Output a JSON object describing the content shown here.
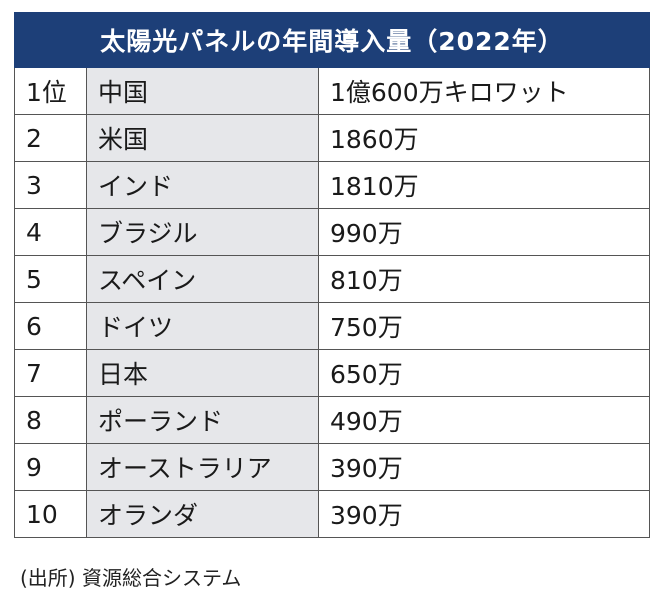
{
  "title": "太陽光パネルの年間導入量（2022年）",
  "rows": [
    {
      "rank": "1位",
      "country": "中国",
      "amount": "1億600万キロワット"
    },
    {
      "rank": "2",
      "country": "米国",
      "amount": "1860万"
    },
    {
      "rank": "3",
      "country": "インド",
      "amount": "1810万"
    },
    {
      "rank": "4",
      "country": "ブラジル",
      "amount": "990万"
    },
    {
      "rank": "5",
      "country": "スペイン",
      "amount": "810万"
    },
    {
      "rank": "6",
      "country": "ドイツ",
      "amount": "750万"
    },
    {
      "rank": "7",
      "country": "日本",
      "amount": "650万"
    },
    {
      "rank": "8",
      "country": "ポーランド",
      "amount": "490万"
    },
    {
      "rank": "9",
      "country": "オーストラリア",
      "amount": "390万"
    },
    {
      "rank": "10",
      "country": "オランダ",
      "amount": "390万"
    }
  ],
  "source": "(出所) 資源総合システム",
  "colors": {
    "header_background": "#1d3f78",
    "country_column_background": "#e6e7ea",
    "border": "#555555"
  }
}
